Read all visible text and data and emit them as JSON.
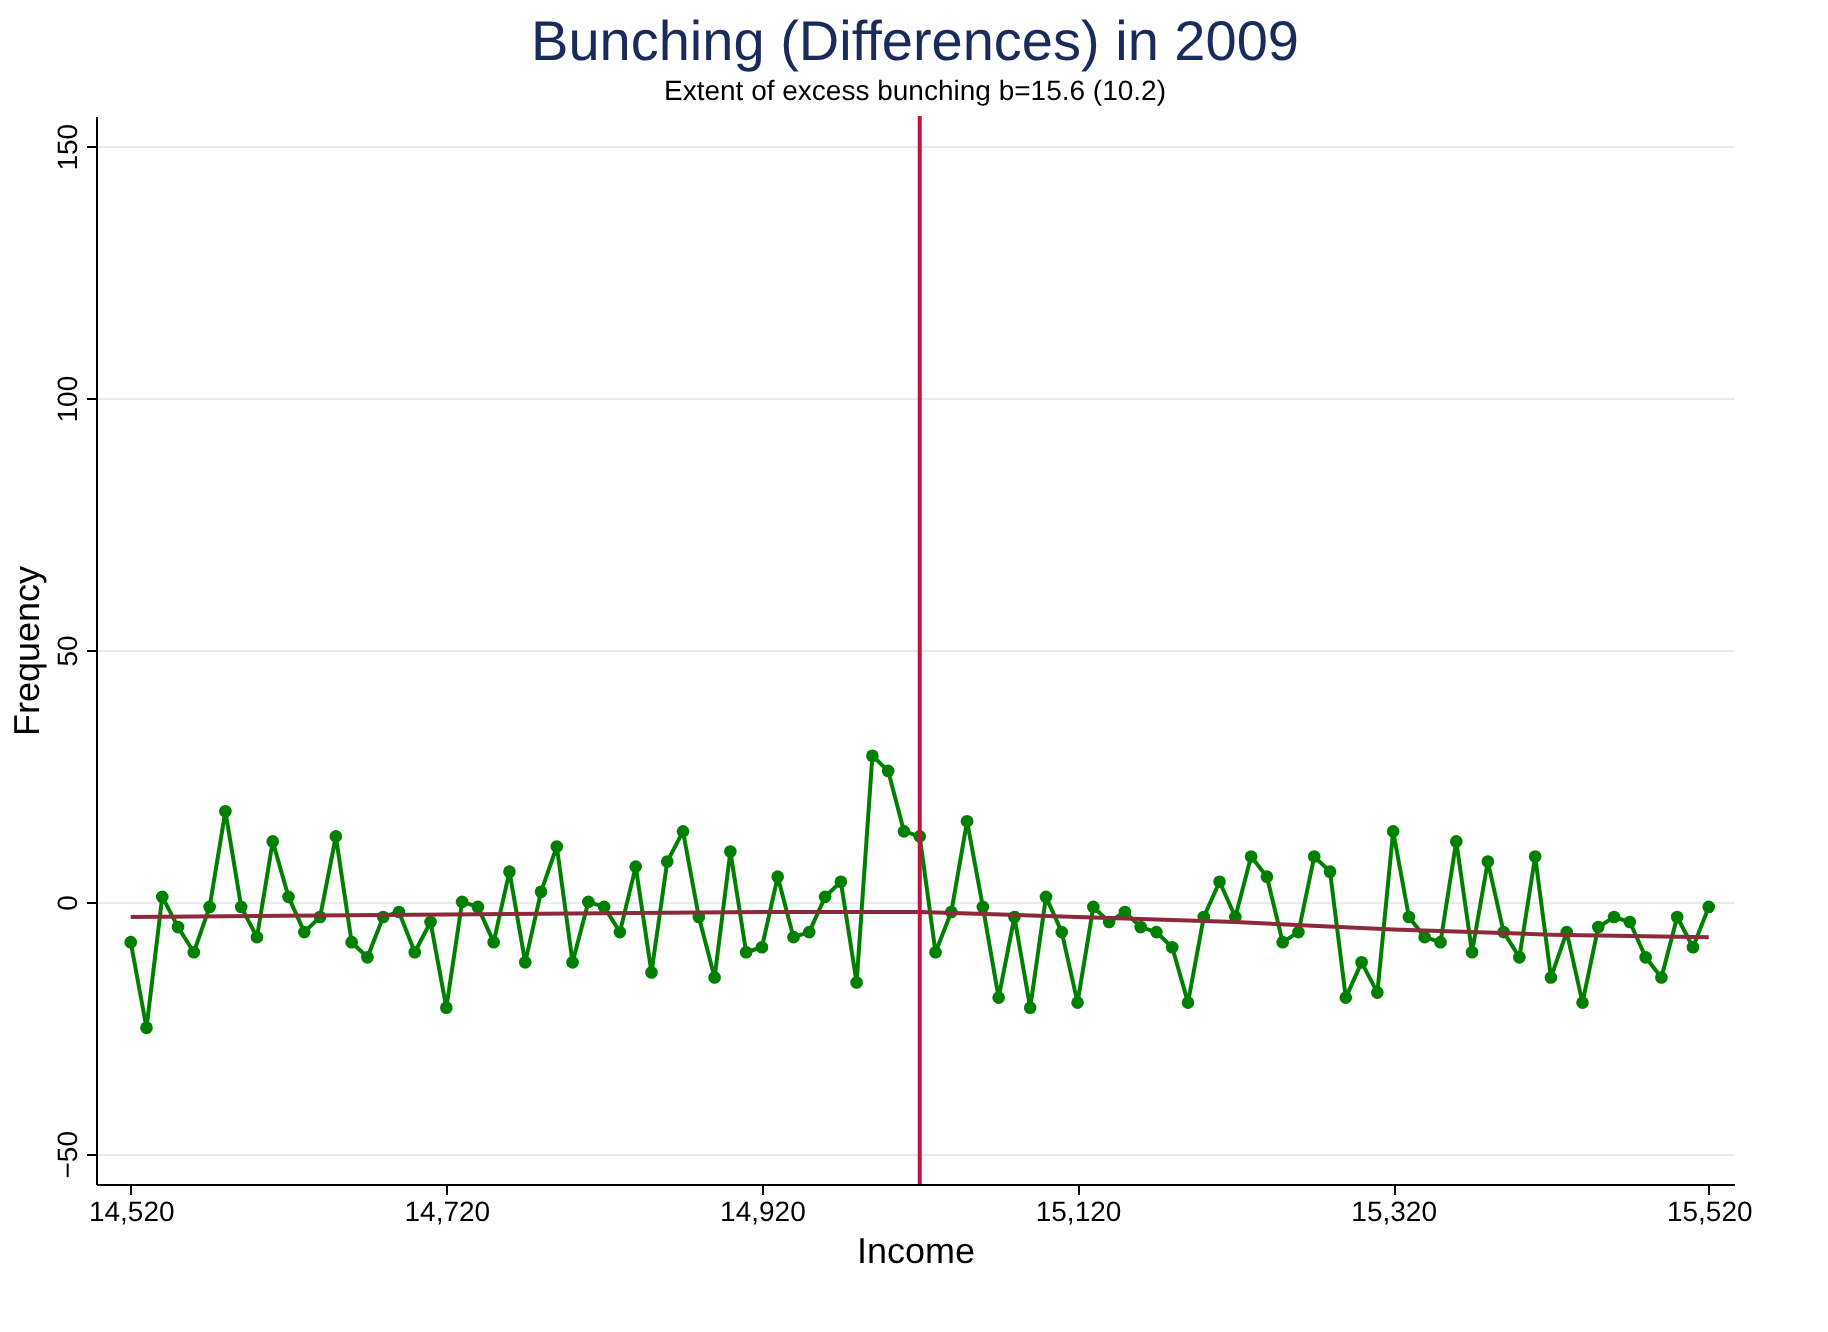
{
  "chart_data": {
    "type": "line",
    "title": "Bunching (Differences) in 2009",
    "subtitle": "Extent of excess bunching b=15.6 (10.2)",
    "xlabel": "Income",
    "ylabel": "Frequency",
    "xlim": [
      14498,
      15536
    ],
    "ylim": [
      -56,
      156
    ],
    "xticks": [
      {
        "value": 14520,
        "label": "14,520"
      },
      {
        "value": 14720,
        "label": "14,720"
      },
      {
        "value": 14920,
        "label": "14,920"
      },
      {
        "value": 15120,
        "label": "15,120"
      },
      {
        "value": 15320,
        "label": "15,320"
      },
      {
        "value": 15520,
        "label": "15,520"
      }
    ],
    "yticks": [
      -50,
      0,
      50,
      100,
      150
    ],
    "grid": "y",
    "series": [
      {
        "marker": "circle",
        "line_style": "solid",
        "color": "#008000",
        "x": [
          14520,
          14530,
          14540,
          14550,
          14560,
          14570,
          14580,
          14590,
          14600,
          14610,
          14620,
          14630,
          14640,
          14650,
          14660,
          14670,
          14680,
          14690,
          14700,
          14710,
          14720,
          14730,
          14740,
          14750,
          14760,
          14770,
          14780,
          14790,
          14800,
          14810,
          14820,
          14830,
          14840,
          14850,
          14860,
          14870,
          14880,
          14890,
          14900,
          14910,
          14920,
          14930,
          14940,
          14950,
          14960,
          14970,
          14980,
          14990,
          15000,
          15010,
          15020,
          15030,
          15040,
          15050,
          15060,
          15070,
          15080,
          15090,
          15100,
          15110,
          15120,
          15130,
          15140,
          15150,
          15160,
          15170,
          15180,
          15190,
          15200,
          15210,
          15220,
          15230,
          15240,
          15250,
          15260,
          15270,
          15280,
          15290,
          15300,
          15310,
          15320,
          15330,
          15340,
          15350,
          15360,
          15370,
          15380,
          15390,
          15400,
          15410,
          15420,
          15430,
          15440,
          15450,
          15460,
          15470,
          15480,
          15490,
          15500,
          15510,
          15520
        ],
        "values": [
          -8,
          -25,
          1,
          -5,
          -10,
          -1,
          18,
          -1,
          -7,
          12,
          1,
          -6,
          -3,
          13,
          -8,
          -11,
          -3,
          -2,
          -10,
          -4,
          -21,
          0,
          -1,
          -8,
          6,
          -12,
          2,
          11,
          -12,
          0,
          -1,
          -6,
          7,
          -14,
          8,
          14,
          -3,
          -15,
          10,
          -10,
          -9,
          5,
          -7,
          -6,
          1,
          4,
          -16,
          29,
          26,
          14,
          13,
          -10,
          -2,
          16,
          -1,
          -19,
          -3,
          -21,
          1,
          -6,
          -20,
          -1,
          -4,
          -2,
          -5,
          -6,
          -9,
          -20,
          -3,
          4,
          -3,
          9,
          5,
          -8,
          -6,
          9,
          6,
          -19,
          -12,
          -18,
          14,
          -3,
          -7,
          -8,
          12,
          -10,
          8,
          -6,
          -11,
          9,
          -15,
          -6,
          -20,
          -5,
          -3,
          -4,
          -11,
          -15,
          -3,
          -9,
          -1
        ]
      },
      {
        "marker": "none",
        "line_style": "solid",
        "color": "#8b2a3a",
        "x": [
          14520,
          14720,
          14920,
          15020,
          15120,
          15220,
          15320,
          15420,
          15520
        ],
        "values": [
          -3,
          -2.5,
          -2,
          -2,
          -3,
          -4,
          -5.5,
          -6.5,
          -7
        ]
      }
    ],
    "ref_lines": [
      {
        "axis": "x",
        "value": 15020,
        "color": "#c8103c",
        "line_style": "solid"
      }
    ]
  }
}
